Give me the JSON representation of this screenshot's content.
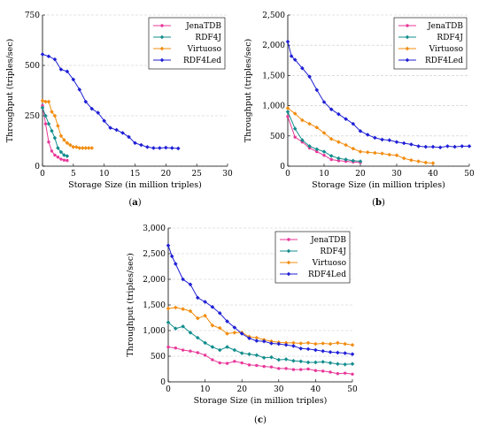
{
  "chart_data": [
    {
      "panel_label": "(a)",
      "type": "line",
      "xlabel": "Storage Size (in million triples)",
      "ylabel": "Throughput (triples/sec)",
      "xlim": [
        0,
        30
      ],
      "ylim": [
        0,
        750
      ],
      "xticks": [
        "0",
        "5",
        "10",
        "15",
        "20",
        "25",
        "30"
      ],
      "yticks": [
        "0",
        "250",
        "500",
        "750"
      ],
      "xtick_values": [
        0,
        5,
        10,
        15,
        20,
        25,
        30
      ],
      "ytick_values": [
        0,
        250,
        500,
        750
      ],
      "grid": "horizontal dashed",
      "legend_position": "top-right",
      "series": [
        {
          "name": "JenaTDB",
          "color": "#e8399a",
          "marker": "circle",
          "x": [
            0,
            0.5,
            1,
            1.5,
            2,
            2.5,
            3,
            3.5,
            4
          ],
          "y": [
            300,
            210,
            120,
            75,
            55,
            45,
            35,
            30,
            28
          ]
        },
        {
          "name": "RDF4J",
          "color": "#138d8d",
          "marker": "diamond",
          "x": [
            0,
            0.5,
            1,
            1.5,
            2,
            2.5,
            3,
            3.5,
            4
          ],
          "y": [
            290,
            250,
            210,
            175,
            140,
            90,
            70,
            55,
            50
          ]
        },
        {
          "name": "Virtuoso",
          "color": "#f28c0f",
          "marker": "diamond",
          "x": [
            0,
            0.5,
            1,
            1.5,
            2,
            2.5,
            3,
            3.5,
            4,
            4.5,
            5,
            5.5,
            6,
            6.5,
            7,
            7.5,
            8
          ],
          "y": [
            325,
            320,
            320,
            270,
            250,
            200,
            150,
            130,
            115,
            105,
            95,
            95,
            90,
            90,
            90,
            90,
            90
          ]
        },
        {
          "name": "RDF4Led",
          "color": "#1f1fd6",
          "marker": "diamond",
          "x": [
            0,
            1,
            2,
            3,
            4,
            5,
            6,
            7,
            8,
            9,
            10,
            11,
            12,
            13,
            14,
            15,
            16,
            17,
            18,
            19,
            20,
            21,
            22
          ],
          "y": [
            555,
            545,
            530,
            480,
            470,
            430,
            380,
            320,
            285,
            265,
            225,
            190,
            180,
            165,
            145,
            115,
            105,
            95,
            90,
            90,
            92,
            90,
            88
          ]
        }
      ]
    },
    {
      "panel_label": "(b)",
      "type": "line",
      "xlabel": "Storage Size (in million triples)",
      "ylabel": "Throughput (triples/sec)",
      "xlim": [
        0,
        50
      ],
      "ylim": [
        0,
        2500
      ],
      "xticks": [
        "0",
        "10",
        "20",
        "30",
        "40",
        "50"
      ],
      "yticks": [
        "0",
        "500",
        "1,000",
        "1,500",
        "2,000",
        "2,500"
      ],
      "xtick_values": [
        0,
        10,
        20,
        30,
        40,
        50
      ],
      "ytick_values": [
        0,
        500,
        1000,
        1500,
        2000,
        2500
      ],
      "grid": "horizontal dashed",
      "legend_position": "top-right",
      "series": [
        {
          "name": "JenaTDB",
          "color": "#e8399a",
          "marker": "circle",
          "x": [
            0,
            2,
            4,
            6,
            8,
            10,
            12,
            14,
            16,
            18,
            20
          ],
          "y": [
            820,
            480,
            400,
            300,
            240,
            180,
            110,
            90,
            80,
            70,
            60
          ]
        },
        {
          "name": "RDF4J",
          "color": "#138d8d",
          "marker": "diamond",
          "x": [
            0,
            2,
            4,
            6,
            8,
            10,
            12,
            14,
            16,
            18,
            20
          ],
          "y": [
            900,
            620,
            430,
            330,
            280,
            240,
            170,
            130,
            110,
            90,
            80
          ]
        },
        {
          "name": "Virtuoso",
          "color": "#f28c0f",
          "marker": "diamond",
          "x": [
            0,
            2,
            4,
            6,
            8,
            10,
            12,
            14,
            16,
            18,
            20,
            22,
            24,
            26,
            28,
            30,
            32,
            34,
            36,
            38,
            40
          ],
          "y": [
            960,
            870,
            760,
            700,
            640,
            550,
            450,
            400,
            350,
            290,
            240,
            230,
            220,
            210,
            190,
            180,
            130,
            100,
            80,
            60,
            50
          ]
        },
        {
          "name": "RDF4Led",
          "color": "#1f1fd6",
          "marker": "diamond",
          "x": [
            0,
            1,
            2,
            4,
            6,
            8,
            10,
            12,
            14,
            16,
            18,
            20,
            22,
            24,
            26,
            28,
            30,
            32,
            34,
            36,
            38,
            40,
            42,
            44,
            46,
            48,
            50
          ],
          "y": [
            2060,
            1820,
            1760,
            1620,
            1480,
            1260,
            1060,
            940,
            860,
            780,
            700,
            580,
            520,
            470,
            440,
            430,
            400,
            380,
            360,
            330,
            320,
            320,
            310,
            330,
            320,
            330,
            330
          ]
        }
      ]
    },
    {
      "panel_label": "(c)",
      "type": "line",
      "xlabel": "Storage Size (in million triples)",
      "ylabel": "Throughput (triples/sec)",
      "xlim": [
        0,
        50
      ],
      "ylim": [
        0,
        3000
      ],
      "xticks": [
        "0",
        "10",
        "20",
        "30",
        "40",
        "50"
      ],
      "yticks": [
        "0",
        "500",
        "1,000",
        "1,500",
        "2,000",
        "2,500",
        "3,000"
      ],
      "xtick_values": [
        0,
        10,
        20,
        30,
        40,
        50
      ],
      "ytick_values": [
        0,
        500,
        1000,
        1500,
        2000,
        2500,
        3000
      ],
      "grid": "horizontal dashed",
      "legend_position": "top-right",
      "series": [
        {
          "name": "JenaTDB",
          "color": "#e8399a",
          "marker": "circle",
          "x": [
            0,
            2,
            4,
            6,
            8,
            10,
            12,
            14,
            16,
            18,
            20,
            22,
            24,
            26,
            28,
            30,
            32,
            34,
            36,
            38,
            40,
            42,
            44,
            46,
            48,
            50
          ],
          "y": [
            680,
            660,
            620,
            600,
            570,
            520,
            430,
            370,
            360,
            400,
            370,
            330,
            320,
            300,
            290,
            260,
            260,
            240,
            240,
            250,
            220,
            210,
            190,
            160,
            170,
            150
          ]
        },
        {
          "name": "RDF4J",
          "color": "#138d8d",
          "marker": "diamond",
          "x": [
            0,
            2,
            4,
            6,
            8,
            10,
            12,
            14,
            16,
            18,
            20,
            22,
            24,
            26,
            28,
            30,
            32,
            34,
            36,
            38,
            40,
            42,
            44,
            46,
            48,
            50
          ],
          "y": [
            1160,
            1040,
            1080,
            960,
            860,
            760,
            680,
            620,
            680,
            620,
            560,
            540,
            520,
            470,
            480,
            430,
            440,
            410,
            400,
            380,
            380,
            390,
            370,
            350,
            340,
            350
          ]
        },
        {
          "name": "Virtuoso",
          "color": "#f28c0f",
          "marker": "diamond",
          "x": [
            0,
            2,
            4,
            6,
            8,
            10,
            12,
            14,
            16,
            18,
            20,
            22,
            24,
            26,
            28,
            30,
            32,
            34,
            36,
            38,
            40,
            42,
            44,
            46,
            48,
            50
          ],
          "y": [
            1430,
            1450,
            1420,
            1380,
            1240,
            1290,
            1100,
            1050,
            940,
            960,
            960,
            880,
            860,
            820,
            790,
            770,
            760,
            760,
            750,
            760,
            740,
            750,
            740,
            760,
            740,
            720
          ]
        },
        {
          "name": "RDF4Led",
          "color": "#1f1fd6",
          "marker": "diamond",
          "x": [
            0,
            1,
            2,
            4,
            6,
            8,
            10,
            12,
            14,
            16,
            18,
            20,
            22,
            24,
            26,
            28,
            30,
            32,
            34,
            36,
            38,
            40,
            42,
            44,
            46,
            48,
            50
          ],
          "y": [
            2660,
            2450,
            2300,
            2000,
            1900,
            1640,
            1560,
            1460,
            1340,
            1180,
            1060,
            940,
            850,
            800,
            790,
            750,
            740,
            720,
            700,
            650,
            640,
            620,
            600,
            580,
            570,
            560,
            540
          ]
        }
      ]
    }
  ]
}
